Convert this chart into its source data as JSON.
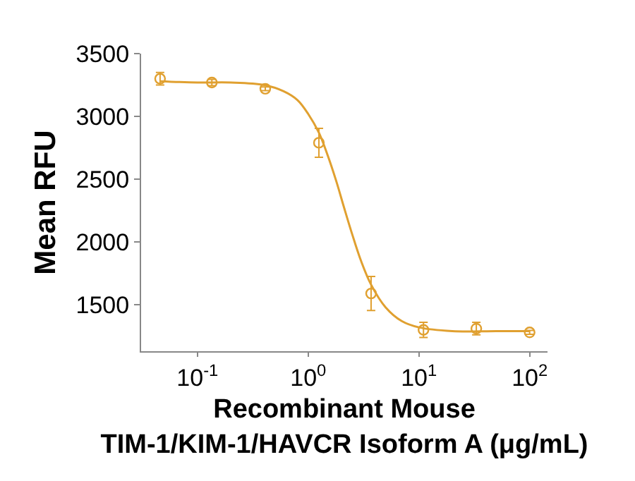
{
  "chart_data": {
    "type": "scatter",
    "xlabel": "Recombinant Mouse\nTIM-1/KIM-1/HAVCR Isoform A (μg/mL)",
    "ylabel": "Mean RFU",
    "log": "x",
    "grid": false,
    "marker": "circle",
    "line_style": "solid",
    "xlim": [
      0.031,
      145
    ],
    "ylim": [
      1130,
      3500
    ],
    "xticks": [
      {
        "value": 0.1,
        "label": "10$^{-1}$"
      },
      {
        "value": 1,
        "label": "10$^{0}$"
      },
      {
        "value": 10,
        "label": "10$^{1}$"
      },
      {
        "value": 100,
        "label": "10$^{2}$"
      }
    ],
    "yticks": [
      1500,
      2000,
      2500,
      3000,
      3500
    ],
    "series": [
      {
        "color": "#e0a030",
        "x": [
          0.046,
          0.135,
          0.41,
          1.25,
          3.7,
          11,
          33,
          100
        ],
        "values": [
          3300,
          3270,
          3220,
          2790,
          1590,
          1300,
          1310,
          1280
        ],
        "errors": [
          50,
          25,
          15,
          115,
          135,
          60,
          50,
          15
        ]
      },
      {
        "type": "line",
        "color": "#e0a030",
        "marker": "none",
        "x": [
          0.046,
          0.1,
          0.2,
          0.4,
          0.6,
          0.8,
          1,
          1.25,
          1.5,
          1.8,
          2.1,
          2.5,
          3,
          3.7,
          5,
          7,
          10,
          20,
          50,
          100
        ],
        "values": [
          3280,
          3270,
          3270,
          3250,
          3200,
          3130,
          3020,
          2870,
          2690,
          2480,
          2280,
          2060,
          1850,
          1660,
          1480,
          1370,
          1320,
          1290,
          1290,
          1290
        ]
      }
    ]
  }
}
